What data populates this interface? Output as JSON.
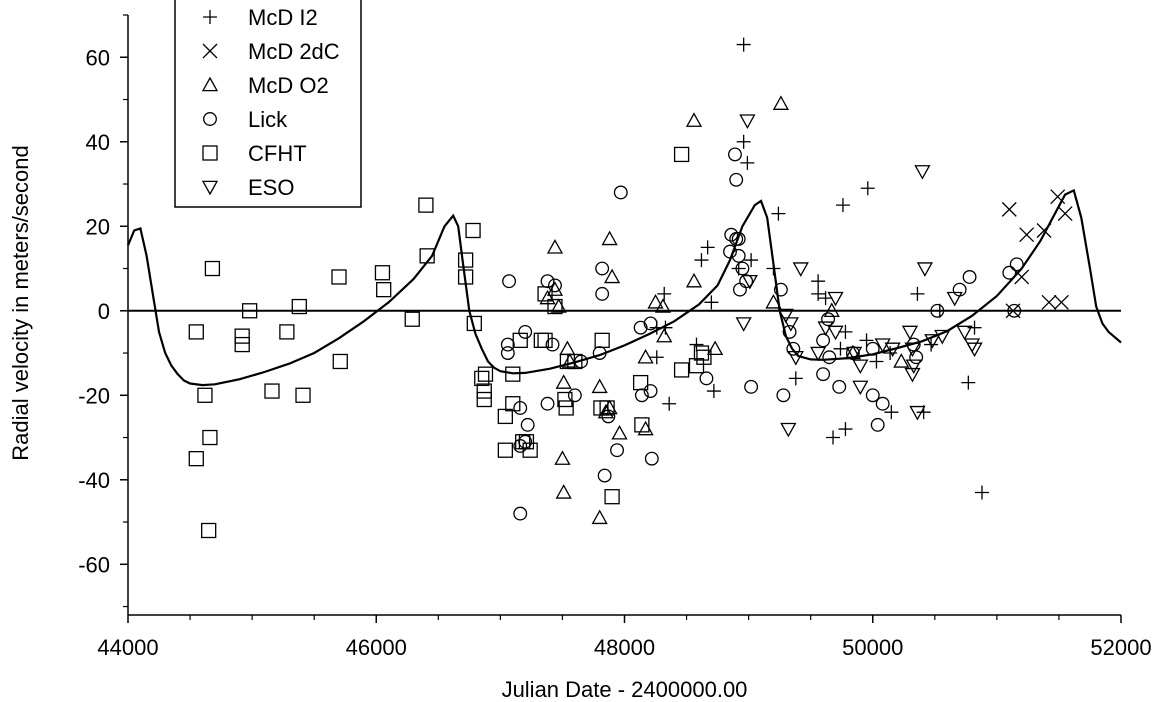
{
  "chart_data": {
    "type": "scatter",
    "xlabel": "Julian Date - 2400000.00",
    "ylabel": "Radial velocity in meters/second",
    "xlim": [
      44000,
      52000
    ],
    "ylim": [
      -72,
      70
    ],
    "xticks": [
      44000,
      46000,
      48000,
      50000,
      52000
    ],
    "yticks": [
      -60,
      -40,
      -20,
      0,
      20,
      40,
      60
    ],
    "xtick_labels": [
      "44000",
      "46000",
      "48000",
      "50000",
      "52000"
    ],
    "ytick_labels": [
      "-60",
      "-40",
      "-20",
      "0",
      "20",
      "40",
      "60"
    ],
    "grid": false,
    "legend_position": "top-left",
    "zero_line": true,
    "series": [
      {
        "name": "McD I2",
        "marker": "plus",
        "points": [
          [
            48960,
            63
          ],
          [
            48960,
            40
          ],
          [
            48990,
            35
          ],
          [
            48920,
            10
          ],
          [
            49020,
            12
          ],
          [
            48670,
            15
          ],
          [
            48620,
            12
          ],
          [
            48700,
            2
          ],
          [
            48720,
            -19
          ],
          [
            48580,
            -8
          ],
          [
            48320,
            4
          ],
          [
            48260,
            -4
          ],
          [
            48330,
            -4
          ],
          [
            48260,
            -11
          ],
          [
            48360,
            -22
          ],
          [
            49200,
            10
          ],
          [
            49240,
            23
          ],
          [
            49560,
            7
          ],
          [
            49620,
            3
          ],
          [
            49760,
            25
          ],
          [
            49960,
            29
          ],
          [
            49380,
            -16
          ],
          [
            49680,
            -30
          ],
          [
            49780,
            -28
          ],
          [
            49740,
            -9
          ],
          [
            49560,
            4
          ],
          [
            49780,
            -5
          ],
          [
            50140,
            -10
          ],
          [
            50030,
            -12
          ],
          [
            50150,
            -24
          ],
          [
            50360,
            4
          ],
          [
            50410,
            -24
          ],
          [
            50470,
            -8
          ],
          [
            50540,
            0
          ],
          [
            50820,
            -4
          ],
          [
            50770,
            -17
          ],
          [
            50880,
            -43
          ],
          [
            49950,
            -7
          ]
        ]
      },
      {
        "name": "McD 2dC",
        "marker": "cross",
        "points": [
          [
            51100,
            24
          ],
          [
            51240,
            18
          ],
          [
            51380,
            19
          ],
          [
            51490,
            27
          ],
          [
            51550,
            23
          ],
          [
            51420,
            2
          ],
          [
            51520,
            2
          ],
          [
            51130,
            0
          ],
          [
            51200,
            8
          ]
        ]
      },
      {
        "name": "McD O2",
        "marker": "triangle-up",
        "points": [
          [
            48560,
            45
          ],
          [
            49260,
            49
          ],
          [
            48560,
            7
          ],
          [
            47880,
            17
          ],
          [
            47440,
            15
          ],
          [
            47900,
            8
          ],
          [
            47440,
            5
          ],
          [
            47470,
            1
          ],
          [
            47380,
            3
          ],
          [
            48250,
            2
          ],
          [
            48310,
            1
          ],
          [
            48170,
            -11
          ],
          [
            48320,
            -6
          ],
          [
            48730,
            -9
          ],
          [
            47540,
            -9
          ],
          [
            47510,
            -17
          ],
          [
            47560,
            -12
          ],
          [
            47800,
            -18
          ],
          [
            47880,
            -23
          ],
          [
            47850,
            -24
          ],
          [
            47960,
            -29
          ],
          [
            48170,
            -28
          ],
          [
            47800,
            -49
          ],
          [
            47500,
            -35
          ],
          [
            47510,
            -43
          ],
          [
            49200,
            2
          ],
          [
            49670,
            0
          ],
          [
            49840,
            -10
          ],
          [
            50230,
            -12
          ]
        ]
      },
      {
        "name": "Lick",
        "marker": "circle",
        "points": [
          [
            47970,
            28
          ],
          [
            48890,
            37
          ],
          [
            48900,
            31
          ],
          [
            48860,
            18
          ],
          [
            48900,
            17
          ],
          [
            48920,
            17
          ],
          [
            48920,
            13
          ],
          [
            48950,
            10
          ],
          [
            48980,
            7
          ],
          [
            48930,
            5
          ],
          [
            48850,
            14
          ],
          [
            49020,
            -18
          ],
          [
            47070,
            7
          ],
          [
            47380,
            7
          ],
          [
            47440,
            6
          ],
          [
            47820,
            10
          ],
          [
            47820,
            4
          ],
          [
            47870,
            -25
          ],
          [
            48130,
            -4
          ],
          [
            48210,
            -3
          ],
          [
            48140,
            -20
          ],
          [
            48210,
            -19
          ],
          [
            48220,
            -35
          ],
          [
            47060,
            -8
          ],
          [
            47060,
            -10
          ],
          [
            47200,
            -5
          ],
          [
            47380,
            -22
          ],
          [
            47160,
            -23
          ],
          [
            47220,
            -27
          ],
          [
            47420,
            -8
          ],
          [
            47600,
            -20
          ],
          [
            47840,
            -39
          ],
          [
            47160,
            -32
          ],
          [
            47200,
            -31
          ],
          [
            47940,
            -33
          ],
          [
            47160,
            -48
          ],
          [
            47650,
            -12
          ],
          [
            47800,
            -10
          ],
          [
            49260,
            5
          ],
          [
            49330,
            -5
          ],
          [
            49280,
            -20
          ],
          [
            49360,
            -9
          ],
          [
            49600,
            -15
          ],
          [
            49600,
            -7
          ],
          [
            49650,
            -11
          ],
          [
            49730,
            -18
          ],
          [
            49640,
            -2
          ],
          [
            49840,
            -10
          ],
          [
            50000,
            -9
          ],
          [
            50040,
            -27
          ],
          [
            50000,
            -20
          ],
          [
            50080,
            -22
          ],
          [
            50330,
            -8
          ],
          [
            50350,
            -11
          ],
          [
            50520,
            0
          ],
          [
            50700,
            5
          ],
          [
            50780,
            8
          ],
          [
            51100,
            9
          ],
          [
            51160,
            11
          ],
          [
            51140,
            0
          ],
          [
            48660,
            -16
          ]
        ]
      },
      {
        "name": "CFHT",
        "marker": "square",
        "points": [
          [
            44550,
            -5
          ],
          [
            44680,
            10
          ],
          [
            44620,
            -20
          ],
          [
            44660,
            -30
          ],
          [
            44550,
            -35
          ],
          [
            44650,
            -52
          ],
          [
            44980,
            0
          ],
          [
            44920,
            -6
          ],
          [
            44920,
            -8
          ],
          [
            45160,
            -19
          ],
          [
            45280,
            -5
          ],
          [
            45380,
            1
          ],
          [
            45410,
            -20
          ],
          [
            45700,
            8
          ],
          [
            45710,
            -12
          ],
          [
            46050,
            9
          ],
          [
            46060,
            5
          ],
          [
            46290,
            -2
          ],
          [
            46410,
            13
          ],
          [
            46400,
            25
          ],
          [
            46720,
            12
          ],
          [
            46720,
            8
          ],
          [
            46780,
            19
          ],
          [
            46790,
            -3
          ],
          [
            46850,
            -16
          ],
          [
            46880,
            -15
          ],
          [
            46870,
            -19
          ],
          [
            46870,
            -21
          ],
          [
            47040,
            -25
          ],
          [
            47040,
            -33
          ],
          [
            47100,
            -22
          ],
          [
            47100,
            -15
          ],
          [
            47160,
            -7
          ],
          [
            47180,
            -31
          ],
          [
            47210,
            -31
          ],
          [
            47240,
            -33
          ],
          [
            47330,
            -7
          ],
          [
            47360,
            -7
          ],
          [
            47360,
            4
          ],
          [
            47440,
            1
          ],
          [
            47520,
            -21
          ],
          [
            47530,
            -23
          ],
          [
            47540,
            -12
          ],
          [
            47600,
            -12
          ],
          [
            47810,
            -23
          ],
          [
            47820,
            -7
          ],
          [
            47860,
            -23
          ],
          [
            47900,
            -44
          ],
          [
            48130,
            -17
          ],
          [
            48140,
            -27
          ],
          [
            48460,
            37
          ],
          [
            48460,
            -14
          ],
          [
            48580,
            -13
          ],
          [
            48620,
            -10
          ],
          [
            48640,
            -11
          ]
        ]
      },
      {
        "name": "ESO",
        "marker": "triangle-down",
        "points": [
          [
            48990,
            45
          ],
          [
            49010,
            7
          ],
          [
            48960,
            -3
          ],
          [
            49300,
            -1
          ],
          [
            49320,
            -28
          ],
          [
            49340,
            -3
          ],
          [
            49420,
            10
          ],
          [
            49380,
            -11
          ],
          [
            49560,
            -10
          ],
          [
            49620,
            -4
          ],
          [
            49700,
            3
          ],
          [
            49700,
            -5
          ],
          [
            49850,
            -10
          ],
          [
            49900,
            -13
          ],
          [
            49900,
            -18
          ],
          [
            50080,
            -8
          ],
          [
            50160,
            -9
          ],
          [
            50300,
            -5
          ],
          [
            50320,
            -9
          ],
          [
            50330,
            -13
          ],
          [
            50320,
            -15
          ],
          [
            50360,
            -24
          ],
          [
            50400,
            33
          ],
          [
            50420,
            10
          ],
          [
            50480,
            -7
          ],
          [
            50560,
            -6
          ],
          [
            50660,
            3
          ],
          [
            50740,
            -5
          ],
          [
            50800,
            -8
          ],
          [
            50820,
            -9
          ]
        ]
      }
    ],
    "model_curve": [
      [
        44000,
        15.5
      ],
      [
        44050,
        19
      ],
      [
        44100,
        19.5
      ],
      [
        44150,
        13
      ],
      [
        44200,
        4
      ],
      [
        44250,
        -5
      ],
      [
        44300,
        -10
      ],
      [
        44350,
        -13
      ],
      [
        44400,
        -15
      ],
      [
        44450,
        -16.5
      ],
      [
        44500,
        -17.2
      ],
      [
        44600,
        -17.6
      ],
      [
        44700,
        -17.4
      ],
      [
        44900,
        -16.2
      ],
      [
        45100,
        -14.5
      ],
      [
        45300,
        -12.5
      ],
      [
        45500,
        -10
      ],
      [
        45700,
        -6.5
      ],
      [
        45900,
        -2.5
      ],
      [
        46100,
        2
      ],
      [
        46300,
        7.5
      ],
      [
        46450,
        13
      ],
      [
        46550,
        20
      ],
      [
        46620,
        22.5
      ],
      [
        46660,
        20
      ],
      [
        46700,
        11
      ],
      [
        46750,
        0
      ],
      [
        46800,
        -5.5
      ],
      [
        46850,
        -9
      ],
      [
        46900,
        -12
      ],
      [
        46950,
        -13.5
      ],
      [
        47000,
        -14.3
      ],
      [
        47100,
        -14.8
      ],
      [
        47200,
        -14.7
      ],
      [
        47400,
        -13.7
      ],
      [
        47600,
        -12.2
      ],
      [
        47800,
        -10.5
      ],
      [
        48000,
        -8.2
      ],
      [
        48200,
        -5.5
      ],
      [
        48400,
        -2.5
      ],
      [
        48600,
        1.5
      ],
      [
        48750,
        6
      ],
      [
        48850,
        12
      ],
      [
        48950,
        20
      ],
      [
        49050,
        25
      ],
      [
        49100,
        26
      ],
      [
        49150,
        22
      ],
      [
        49200,
        11
      ],
      [
        49250,
        0
      ],
      [
        49300,
        -6
      ],
      [
        49350,
        -9
      ],
      [
        49400,
        -10.7
      ],
      [
        49500,
        -11.5
      ],
      [
        49600,
        -11.6
      ],
      [
        49800,
        -11.2
      ],
      [
        50000,
        -10.3
      ],
      [
        50200,
        -8.8
      ],
      [
        50400,
        -7.2
      ],
      [
        50600,
        -4.8
      ],
      [
        50800,
        -1.2
      ],
      [
        51000,
        3.5
      ],
      [
        51200,
        10
      ],
      [
        51350,
        16.5
      ],
      [
        51450,
        22
      ],
      [
        51550,
        27.5
      ],
      [
        51620,
        28.5
      ],
      [
        51680,
        22
      ],
      [
        51750,
        10
      ],
      [
        51800,
        1
      ],
      [
        51850,
        -3
      ],
      [
        51900,
        -5
      ],
      [
        52000,
        -7.5
      ]
    ]
  }
}
